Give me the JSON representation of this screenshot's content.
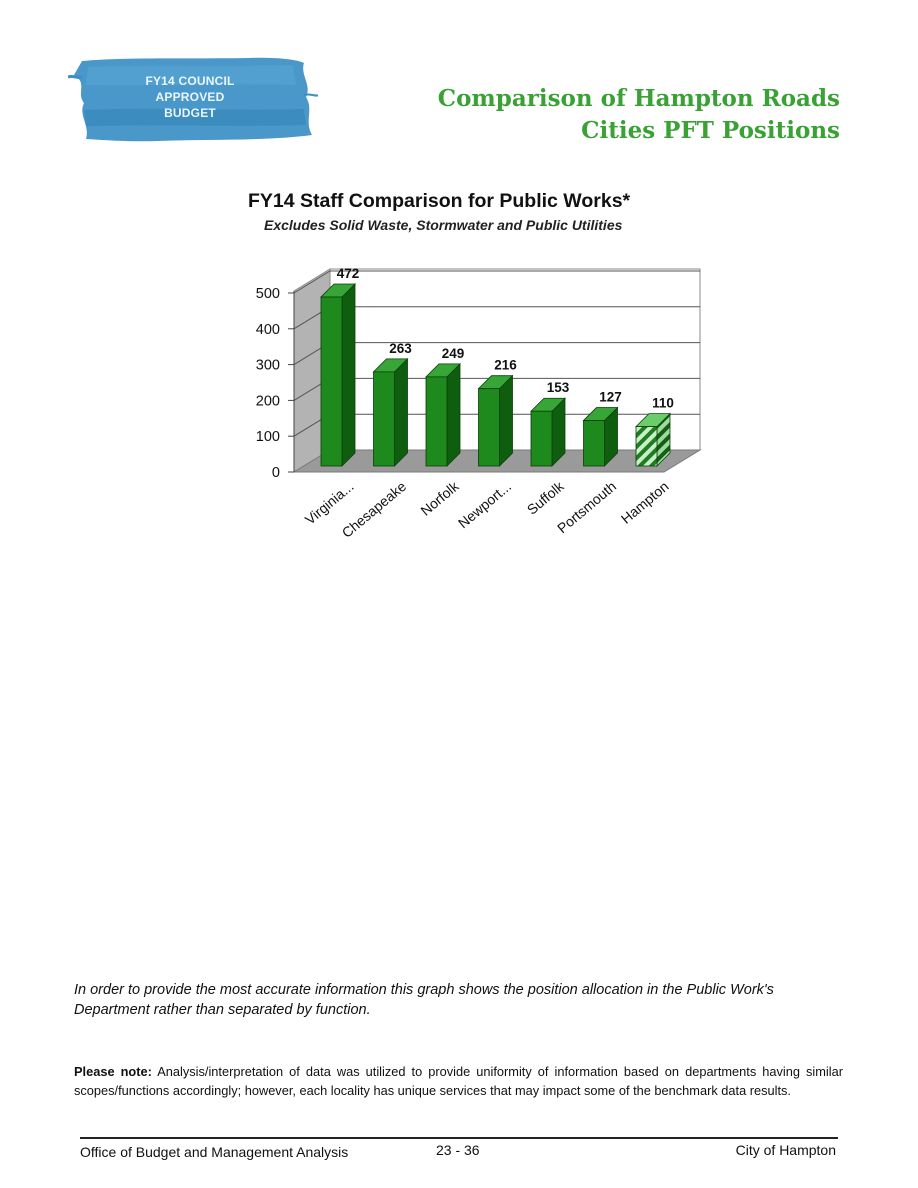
{
  "badge": {
    "line1": "FY14 COUNCIL",
    "line2": "APPROVED",
    "line3": "BUDGET",
    "color": "#3b8fc4"
  },
  "header": {
    "title_line1": "Comparison of Hampton Roads",
    "title_line2": "Cities PFT Positions",
    "title_color": "#3aa234"
  },
  "chart_data": {
    "type": "bar",
    "title": "FY14  Staff Comparison for Public Works*",
    "subtitle": "Excludes Solid Waste, Stormwater and Public Utilities",
    "categories": [
      "Virginia...",
      "Chesapeake",
      "Norfolk",
      "Newport...",
      "Suffolk",
      "Portsmouth",
      "Hampton"
    ],
    "values": [
      472,
      263,
      249,
      216,
      153,
      127,
      110
    ],
    "data_labels": [
      "472",
      "263",
      "249",
      "216",
      "153",
      "127",
      "110"
    ],
    "yticks": [
      "0",
      "100",
      "200",
      "300",
      "400",
      "500"
    ],
    "ylim": [
      0,
      500
    ],
    "grid": true,
    "highlight_category": "Hampton",
    "bar_color": "#1e8a1e",
    "highlight_color": "#4caf4c"
  },
  "notes": {
    "italic_note": "In order to provide the most accurate information this graph shows the position allocation in the Public Work's Department rather than separated by function.",
    "please_note_label": "Please note:",
    "please_note_text": "Analysis/interpretation of data was utilized to provide uniformity of information based on departments having similar scopes/functions accordingly; however, each locality has unique services that may impact some of the benchmark data results."
  },
  "footer": {
    "left": "Office of Budget and Management Analysis",
    "center": "23 - 36",
    "right": "City of Hampton"
  }
}
